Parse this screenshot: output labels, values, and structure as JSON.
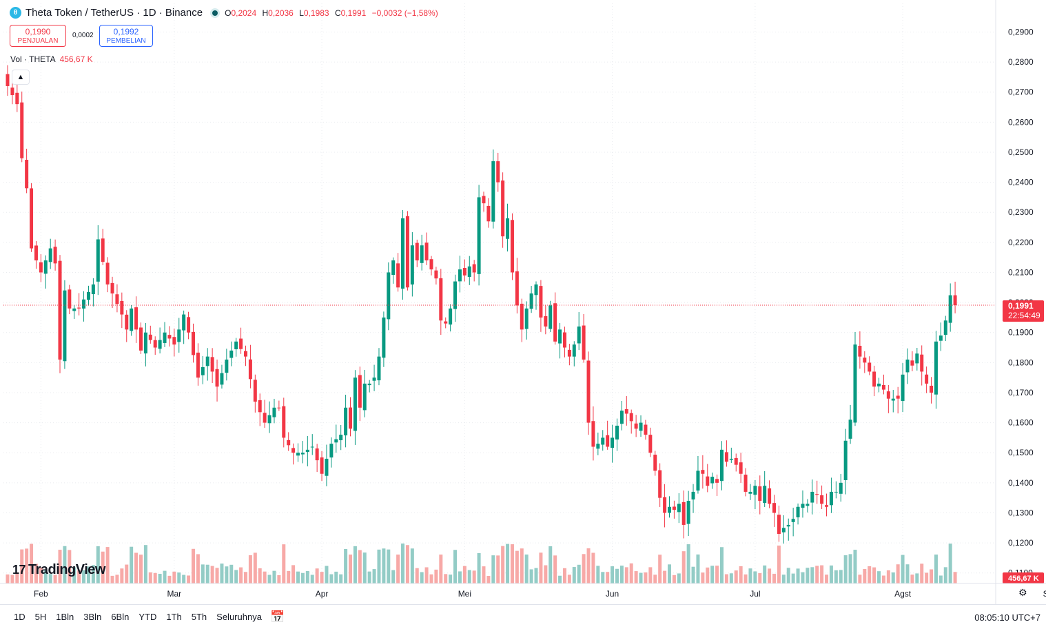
{
  "header": {
    "coin_icon_letter": "θ",
    "symbol_title": "Theta Token / TetherUS · 1D · Binance",
    "ohlc": {
      "o_label": "O",
      "o": "0,2024",
      "h_label": "H",
      "h": "0,2036",
      "l_label": "L",
      "l": "0,1983",
      "c_label": "C",
      "c": "0,1991",
      "change": "−0,0032 (−1,58%)"
    }
  },
  "trade": {
    "sell_price": "0,1990",
    "sell_label": "PENJUALAN",
    "spread": "0,0002",
    "buy_price": "0,1992",
    "buy_label": "PEMBELIAN"
  },
  "volume_legend": {
    "label": "Vol · THETA",
    "value": "456,67 K"
  },
  "price_tag": {
    "price": "0,1991",
    "countdown": "22:54:49"
  },
  "volume_tag": "456,67 K",
  "logo_text": "TradingView",
  "footer": {
    "timeframes": [
      "1D",
      "5H",
      "1Bln",
      "3Bln",
      "6Bln",
      "YTD",
      "1Th",
      "5Th",
      "Seluruhnya"
    ],
    "clock": "08:05:10 UTC+7"
  },
  "colors": {
    "up": "#089981",
    "down": "#f23645",
    "vol_up": "#93ccc6",
    "vol_down": "#f7a9a7",
    "grid": "#e9ebef",
    "last_price_line": "#f23645"
  },
  "chart_data": {
    "type": "candlestick",
    "ylim": [
      0.1065,
      0.2995
    ],
    "y_ticks": [
      "0,2900",
      "0,2800",
      "0,2700",
      "0,2600",
      "0,2500",
      "0,2400",
      "0,2300",
      "0,2200",
      "0,2100",
      "0,2000",
      "0,1900",
      "0,1800",
      "0,1700",
      "0,1600",
      "0,1500",
      "0,1400",
      "0,1300",
      "0,1200",
      "0,1100"
    ],
    "y_tick_values": [
      0.29,
      0.28,
      0.27,
      0.26,
      0.25,
      0.24,
      0.23,
      0.22,
      0.21,
      0.2,
      0.19,
      0.18,
      0.17,
      0.16,
      0.15,
      0.14,
      0.13,
      0.12,
      0.11
    ],
    "x_labels": [
      "Feb",
      "Mar",
      "Apr",
      "Mei",
      "Jun",
      "Jul",
      "Agst",
      "Sep"
    ],
    "x_label_day_index": [
      7,
      35,
      66,
      96,
      127,
      157,
      188,
      219
    ],
    "last_price": 0.1991,
    "ohlc_anchor_closes": [
      [
        0,
        0.272
      ],
      [
        2,
        0.266
      ],
      [
        3,
        0.248
      ],
      [
        4,
        0.238
      ],
      [
        5,
        0.218
      ],
      [
        7,
        0.21
      ],
      [
        9,
        0.218
      ],
      [
        10,
        0.213
      ],
      [
        11,
        0.181
      ],
      [
        12,
        0.204
      ],
      [
        13,
        0.198
      ],
      [
        14,
        0.198
      ],
      [
        15,
        0.198
      ],
      [
        16,
        0.201
      ],
      [
        18,
        0.206
      ],
      [
        19,
        0.221
      ],
      [
        21,
        0.206
      ],
      [
        22,
        0.203
      ],
      [
        24,
        0.196
      ],
      [
        25,
        0.191
      ],
      [
        26,
        0.198
      ],
      [
        28,
        0.184
      ],
      [
        29,
        0.19
      ],
      [
        31,
        0.185
      ],
      [
        33,
        0.19
      ],
      [
        35,
        0.186
      ],
      [
        37,
        0.196
      ],
      [
        38,
        0.19
      ],
      [
        40,
        0.175
      ],
      [
        42,
        0.182
      ],
      [
        44,
        0.172
      ],
      [
        46,
        0.181
      ],
      [
        48,
        0.187
      ],
      [
        50,
        0.182
      ],
      [
        52,
        0.167
      ],
      [
        54,
        0.16
      ],
      [
        56,
        0.165
      ],
      [
        57,
        0.165
      ],
      [
        58,
        0.155
      ],
      [
        60,
        0.15
      ],
      [
        62,
        0.15
      ],
      [
        64,
        0.152
      ],
      [
        66,
        0.143
      ],
      [
        67,
        0.148
      ],
      [
        68,
        0.153
      ],
      [
        70,
        0.156
      ],
      [
        71,
        0.165
      ],
      [
        72,
        0.158
      ],
      [
        73,
        0.175
      ],
      [
        74,
        0.165
      ],
      [
        75,
        0.173
      ],
      [
        76,
        0.173
      ],
      [
        77,
        0.175
      ],
      [
        78,
        0.182
      ],
      [
        79,
        0.195
      ],
      [
        80,
        0.21
      ],
      [
        81,
        0.214
      ],
      [
        82,
        0.205
      ],
      [
        83,
        0.228
      ],
      [
        84,
        0.205
      ],
      [
        85,
        0.219
      ],
      [
        86,
        0.214
      ],
      [
        87,
        0.219
      ],
      [
        88,
        0.214
      ],
      [
        89,
        0.211
      ],
      [
        90,
        0.208
      ],
      [
        91,
        0.194
      ],
      [
        92,
        0.193
      ],
      [
        93,
        0.198
      ],
      [
        94,
        0.207
      ],
      [
        95,
        0.211
      ],
      [
        96,
        0.209
      ],
      [
        97,
        0.212
      ],
      [
        98,
        0.21
      ],
      [
        99,
        0.235
      ],
      [
        100,
        0.233
      ],
      [
        101,
        0.227
      ],
      [
        102,
        0.247
      ],
      [
        103,
        0.24
      ],
      [
        104,
        0.222
      ],
      [
        105,
        0.228
      ],
      [
        106,
        0.21
      ],
      [
        107,
        0.199
      ],
      [
        108,
        0.191
      ],
      [
        109,
        0.198
      ],
      [
        110,
        0.203
      ],
      [
        111,
        0.206
      ],
      [
        112,
        0.195
      ],
      [
        113,
        0.192
      ],
      [
        114,
        0.199
      ],
      [
        115,
        0.187
      ],
      [
        116,
        0.191
      ],
      [
        117,
        0.185
      ],
      [
        118,
        0.182
      ],
      [
        119,
        0.186
      ],
      [
        120,
        0.192
      ],
      [
        121,
        0.181
      ],
      [
        122,
        0.16
      ],
      [
        123,
        0.152
      ],
      [
        124,
        0.153
      ],
      [
        125,
        0.155
      ],
      [
        126,
        0.152
      ],
      [
        127,
        0.155
      ],
      [
        128,
        0.159
      ],
      [
        129,
        0.164
      ],
      [
        130,
        0.163
      ],
      [
        132,
        0.158
      ],
      [
        133,
        0.16
      ],
      [
        134,
        0.156
      ],
      [
        135,
        0.15
      ],
      [
        136,
        0.144
      ],
      [
        137,
        0.135
      ],
      [
        138,
        0.13
      ],
      [
        139,
        0.132
      ],
      [
        140,
        0.131
      ],
      [
        141,
        0.133
      ],
      [
        142,
        0.126
      ],
      [
        143,
        0.134
      ],
      [
        144,
        0.137
      ],
      [
        145,
        0.144
      ],
      [
        146,
        0.143
      ],
      [
        147,
        0.139
      ],
      [
        148,
        0.142
      ],
      [
        149,
        0.14
      ],
      [
        150,
        0.151
      ],
      [
        151,
        0.147
      ],
      [
        152,
        0.148
      ],
      [
        153,
        0.146
      ],
      [
        154,
        0.143
      ],
      [
        155,
        0.137
      ],
      [
        156,
        0.137
      ],
      [
        157,
        0.139
      ],
      [
        158,
        0.134
      ],
      [
        159,
        0.139
      ],
      [
        160,
        0.133
      ],
      [
        161,
        0.13
      ],
      [
        162,
        0.123
      ],
      [
        163,
        0.125
      ],
      [
        164,
        0.126
      ],
      [
        165,
        0.128
      ],
      [
        166,
        0.132
      ],
      [
        167,
        0.133
      ],
      [
        168,
        0.133
      ],
      [
        169,
        0.137
      ],
      [
        170,
        0.136
      ],
      [
        171,
        0.133
      ],
      [
        172,
        0.132
      ],
      [
        173,
        0.137
      ],
      [
        174,
        0.137
      ],
      [
        175,
        0.14
      ],
      [
        176,
        0.154
      ],
      [
        177,
        0.161
      ],
      [
        178,
        0.186
      ],
      [
        179,
        0.182
      ],
      [
        180,
        0.18
      ],
      [
        181,
        0.177
      ],
      [
        182,
        0.172
      ],
      [
        183,
        0.173
      ],
      [
        184,
        0.171
      ],
      [
        185,
        0.168
      ],
      [
        186,
        0.168
      ],
      [
        187,
        0.168
      ],
      [
        188,
        0.176
      ],
      [
        189,
        0.181
      ],
      [
        190,
        0.179
      ],
      [
        191,
        0.183
      ],
      [
        192,
        0.177
      ],
      [
        193,
        0.173
      ],
      [
        194,
        0.17
      ],
      [
        195,
        0.187
      ],
      [
        196,
        0.189
      ],
      [
        197,
        0.194
      ],
      [
        198,
        0.2024
      ],
      [
        199,
        0.1991
      ]
    ],
    "volume_ylim": [
      0,
      0.6
    ],
    "volume_note": "volume in millions (M), last bar 0.45667"
  }
}
